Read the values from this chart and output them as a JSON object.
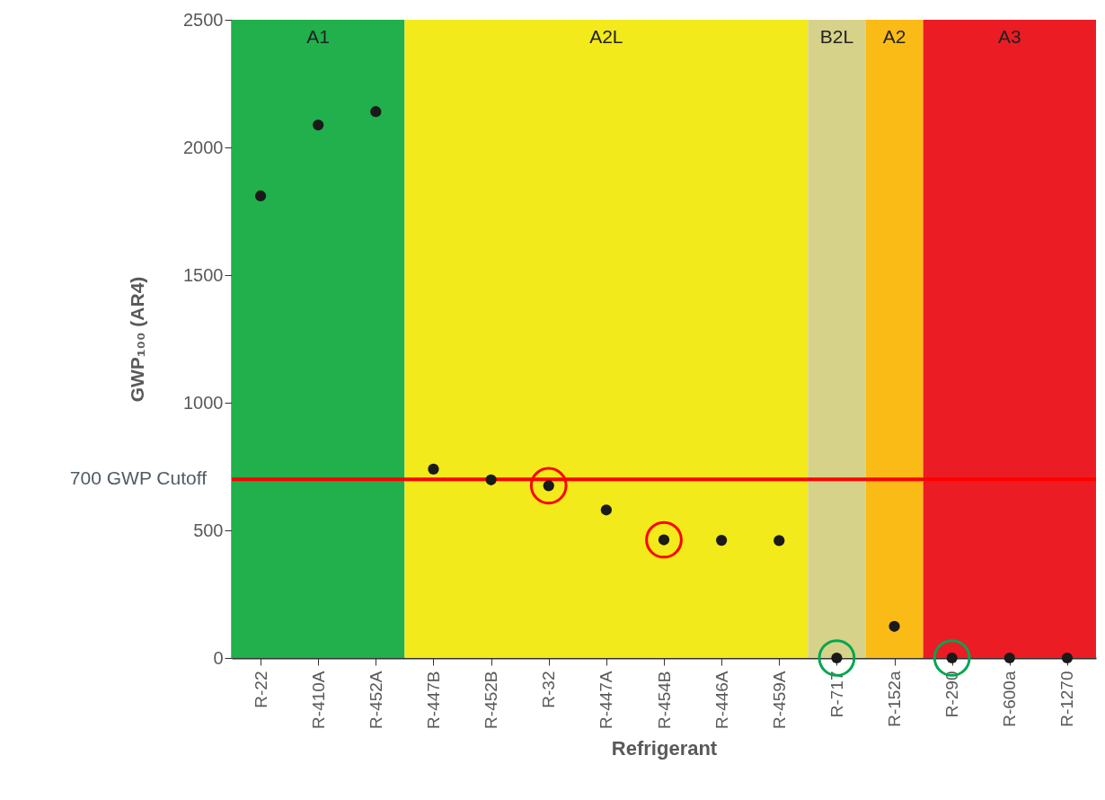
{
  "chart_data": {
    "type": "scatter",
    "xlabel": "Refrigerant",
    "ylabel": "GWP₁₀₀ (AR4)",
    "categories": [
      "R-22",
      "R-410A",
      "R-452A",
      "R-447B",
      "R-452B",
      "R-32",
      "R-447A",
      "R-454B",
      "R-446A",
      "R-459A",
      "R-717",
      "R-152a",
      "R-290",
      "R-600a",
      "R-1270"
    ],
    "series": [
      {
        "color": "#1a1a1a",
        "values": [
          1810,
          2088,
          2140,
          740,
          698,
          675,
          580,
          463,
          461,
          460,
          0,
          124,
          0,
          0,
          0
        ]
      },
      {
        "colors": [
          null,
          null,
          null,
          null,
          null,
          "#ff0000",
          null,
          "#ff0000",
          null,
          null,
          "#00a650",
          null,
          "#00a650",
          null,
          null
        ],
        "values": [
          null,
          null,
          null,
          null,
          null,
          675,
          null,
          463,
          null,
          null,
          0,
          null,
          0,
          null,
          null
        ]
      }
    ],
    "marker": "circle",
    "ylim": [
      0,
      2500
    ],
    "yticks": [
      0,
      500,
      1000,
      1500,
      2000,
      2500
    ],
    "ref_lines": [
      {
        "axis": "y",
        "value": 700,
        "label": "700 GWP Cutoff",
        "color": "#ff0000"
      }
    ],
    "bands": [
      {
        "axis": "x",
        "from": "R-22",
        "to": "R-452A",
        "label": "A1",
        "color": "#21b04b"
      },
      {
        "axis": "x",
        "from": "R-447B",
        "to": "R-459A",
        "label": "A2L",
        "color": "#f2ea1a"
      },
      {
        "axis": "x",
        "from": "R-717",
        "to": "R-717",
        "label": "B2L",
        "color": "#d6d28a"
      },
      {
        "axis": "x",
        "from": "R-152a",
        "to": "R-152a",
        "label": "A2",
        "color": "#fbbb17"
      },
      {
        "axis": "x",
        "from": "R-290",
        "to": "R-1270",
        "label": "A3",
        "color": "#ec1c24"
      }
    ]
  }
}
